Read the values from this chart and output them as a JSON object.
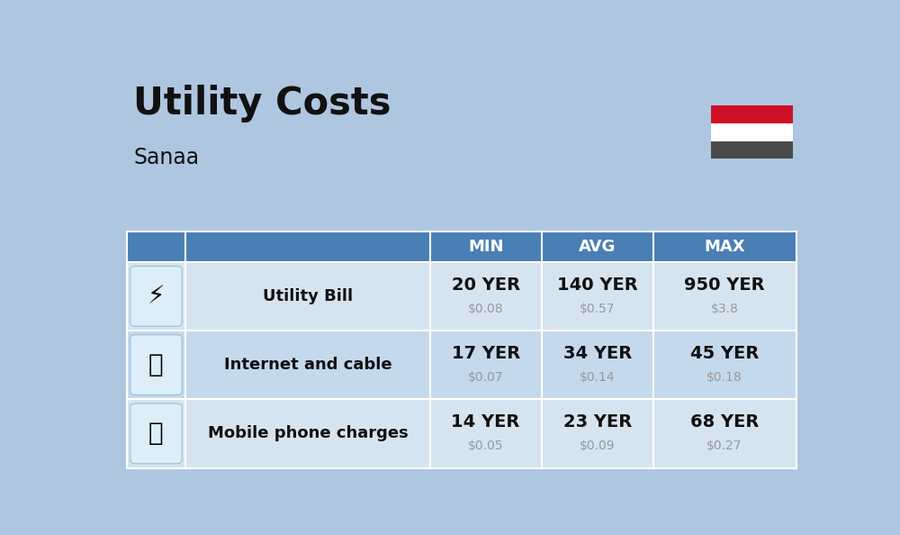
{
  "title": "Utility Costs",
  "subtitle": "Sanaa",
  "background_color": "#aec6e0",
  "header_bg_color": "#4a7fb5",
  "header_text_color": "#ffffff",
  "row_bg_colors": [
    "#d6e4f0",
    "#c5d9ec"
  ],
  "col_headers": [
    "MIN",
    "AVG",
    "MAX"
  ],
  "rows": [
    {
      "label": "Utility Bill",
      "min_yer": "20 YER",
      "min_usd": "$0.08",
      "avg_yer": "140 YER",
      "avg_usd": "$0.57",
      "max_yer": "950 YER",
      "max_usd": "$3.8"
    },
    {
      "label": "Internet and cable",
      "min_yer": "17 YER",
      "min_usd": "$0.07",
      "avg_yer": "34 YER",
      "avg_usd": "$0.14",
      "max_yer": "45 YER",
      "max_usd": "$0.18"
    },
    {
      "label": "Mobile phone charges",
      "min_yer": "14 YER",
      "min_usd": "$0.05",
      "avg_yer": "23 YER",
      "avg_usd": "$0.09",
      "max_yer": "68 YER",
      "max_usd": "$0.27"
    }
  ],
  "title_fontsize": 30,
  "subtitle_fontsize": 17,
  "header_fontsize": 13,
  "label_fontsize": 13,
  "value_fontsize": 14,
  "usd_fontsize": 10,
  "usd_color": "#999999",
  "label_color": "#111111",
  "value_color": "#111111",
  "divider_color": "#ffffff",
  "flag_red": "#ce1126",
  "flag_dark": "#4a4a4a"
}
